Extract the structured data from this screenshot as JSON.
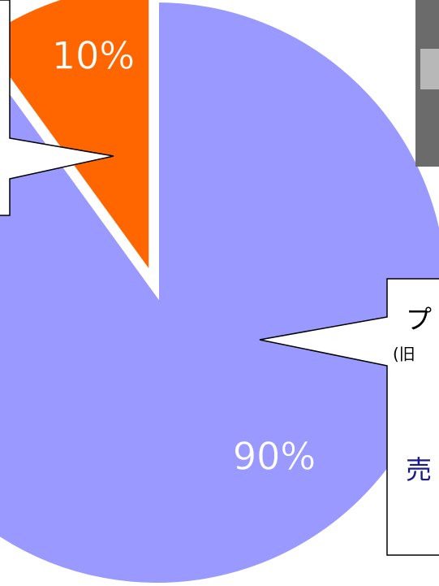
{
  "chart_data": {
    "type": "pie",
    "values": [
      90,
      10
    ],
    "value_labels": [
      "90%",
      "10%"
    ],
    "colors": [
      "#9999ff",
      "#ff6600"
    ]
  },
  "callouts": [
    "プ",
    "(旧",
    "売"
  ]
}
